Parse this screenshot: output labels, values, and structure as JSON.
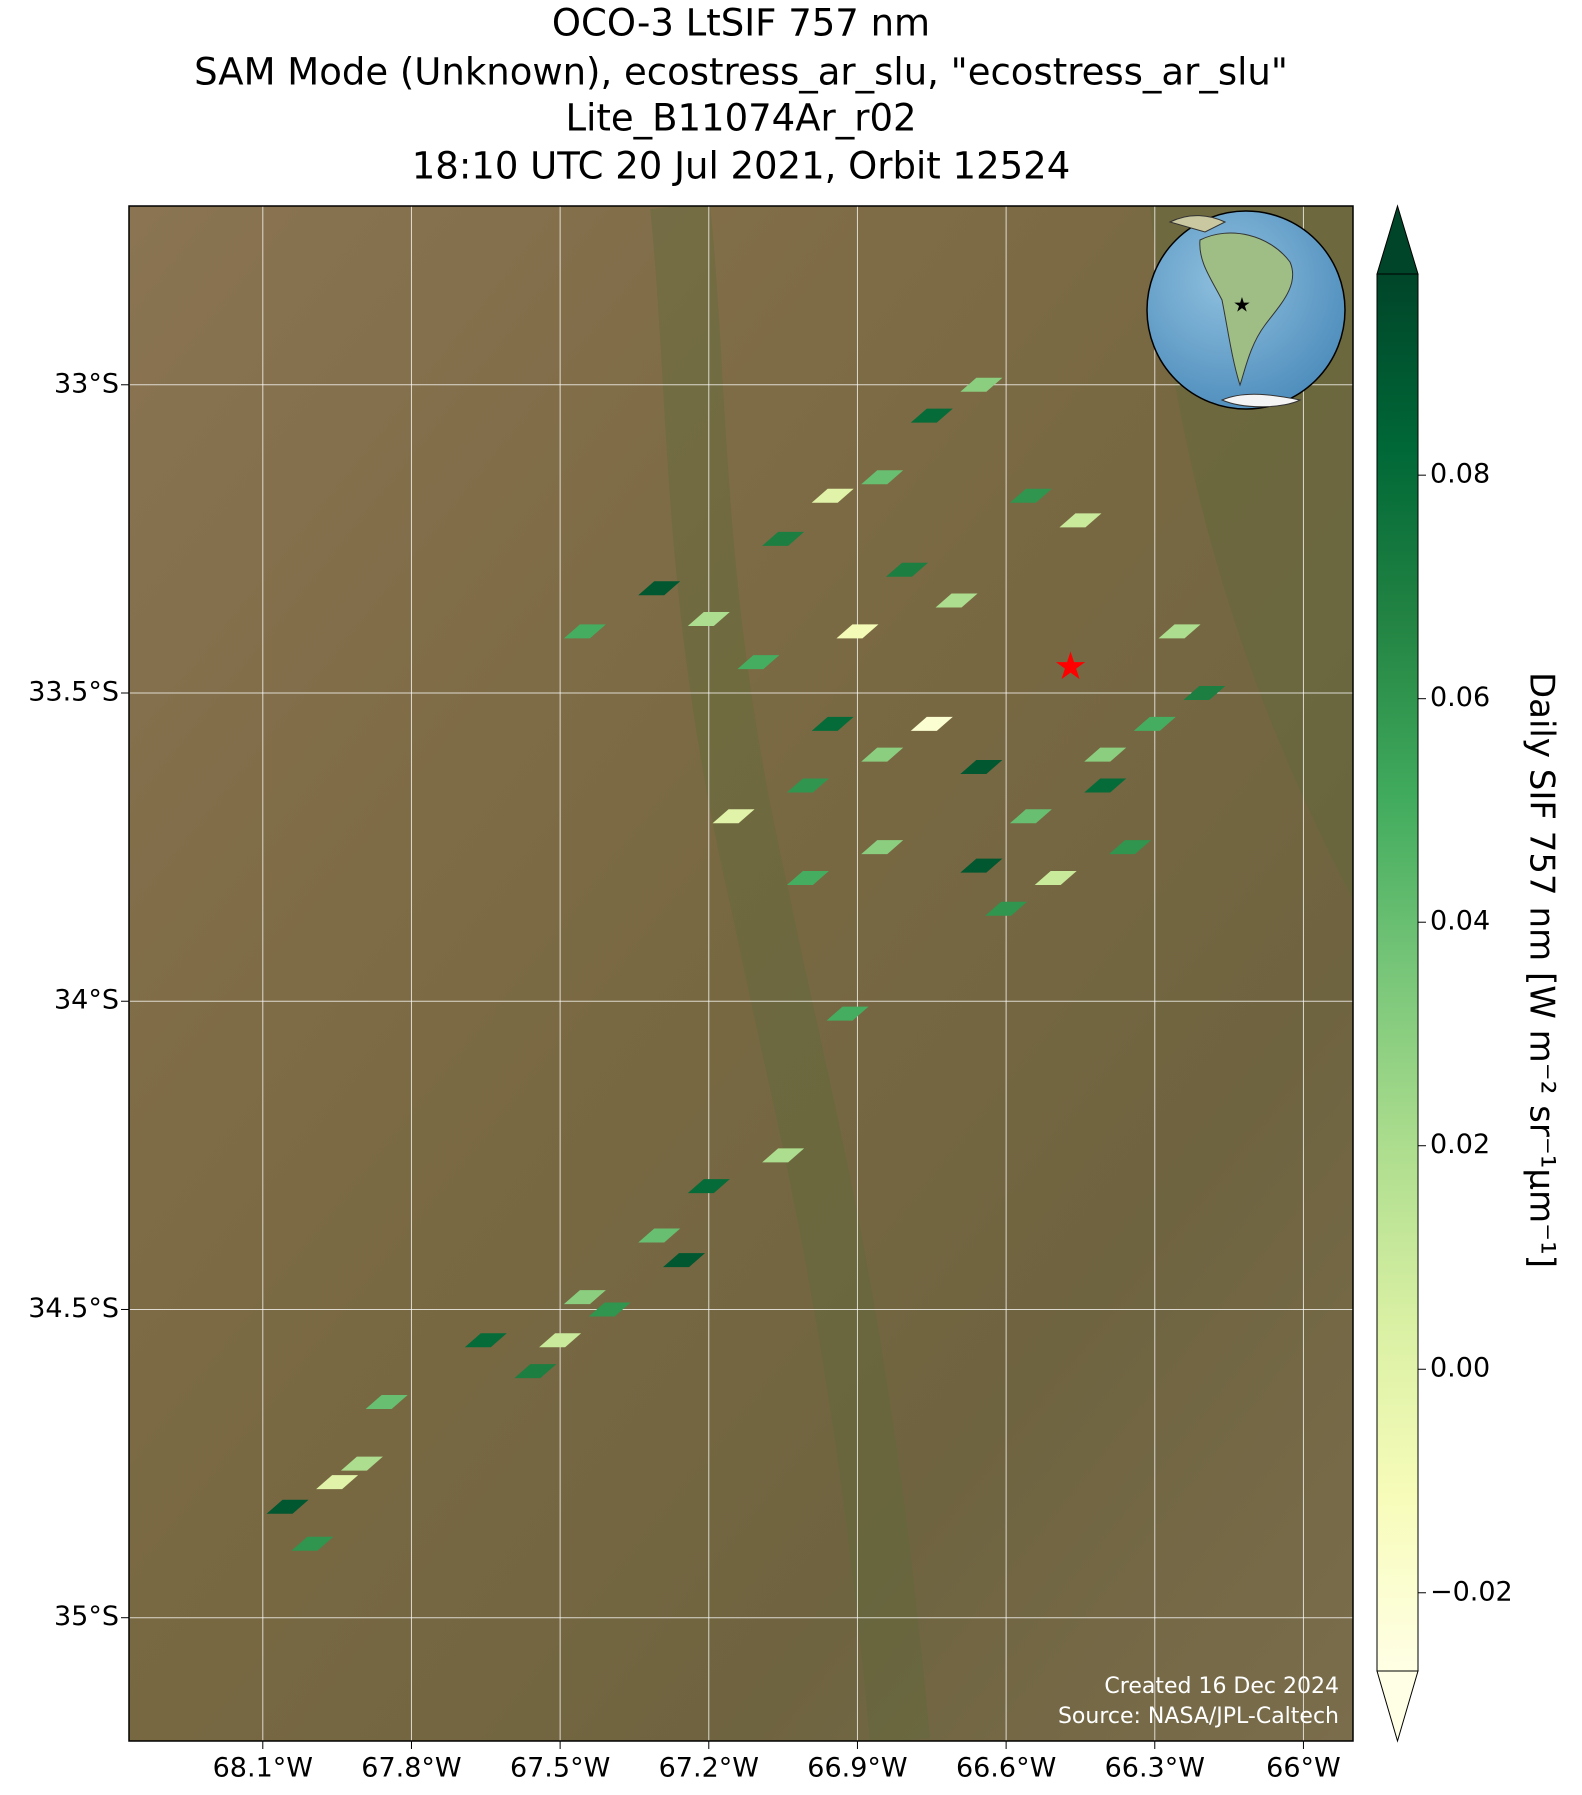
{
  "chart_data": {
    "type": "map",
    "title": [
      "OCO-3 LtSIF 757 nm",
      "SAM Mode (Unknown), ecostress_ar_slu, \"ecostress_ar_slu\"",
      "Lite_B11074Ar_r02",
      "18:10 UTC 20 Jul 2021, Orbit 12524"
    ],
    "xlim": [
      -68.37,
      -65.9
    ],
    "ylim": [
      -35.2,
      -32.71
    ],
    "xticks": [
      {
        "value": -68.1,
        "label": "68.1°W"
      },
      {
        "value": -67.8,
        "label": "67.8°W"
      },
      {
        "value": -67.5,
        "label": "67.5°W"
      },
      {
        "value": -67.2,
        "label": "67.2°W"
      },
      {
        "value": -66.9,
        "label": "66.9°W"
      },
      {
        "value": -66.6,
        "label": "66.6°W"
      },
      {
        "value": -66.3,
        "label": "66.3°W"
      },
      {
        "value": -66,
        "label": "66°W"
      }
    ],
    "yticks": [
      {
        "value": -33,
        "label": "33°S"
      },
      {
        "value": -33.5,
        "label": "33.5°S"
      },
      {
        "value": -34,
        "label": "34°S"
      },
      {
        "value": -34.5,
        "label": "34.5°S"
      },
      {
        "value": -35,
        "label": "35°S"
      }
    ],
    "grid": true,
    "colorbar_label": "Daily SIF 757 nm [W m⁻² sr⁻¹μm⁻¹]",
    "clim": [
      -0.027,
      0.098
    ],
    "cticks": [
      {
        "value": 0.08,
        "label": "0.08"
      },
      {
        "value": 0.06,
        "label": "0.06"
      },
      {
        "value": 0.04,
        "label": "0.04"
      },
      {
        "value": 0.02,
        "label": "0.02"
      },
      {
        "value": 0,
        "label": "0.00"
      },
      {
        "value": -0.02,
        "label": "−0.02"
      }
    ],
    "extend": "both",
    "colormap": [
      "#ffffe5",
      "#f7fcb9",
      "#d9f0a3",
      "#addd8e",
      "#78c679",
      "#41ab5d",
      "#238443",
      "#006837",
      "#004529"
    ],
    "lon": [
      -67.45,
      -67.3,
      -67.2,
      -67.05,
      -66.95,
      -66.85,
      -66.75,
      -66.65,
      -66.55,
      -66.45,
      -67.1,
      -66.9,
      -66.8,
      -66.7,
      -66.95,
      -66.85,
      -67.0,
      -66.75,
      -66.65,
      -66.55,
      -66.4,
      -66.3,
      -66.25,
      -66.2,
      -66.35,
      -66.5,
      -66.65,
      -66.85,
      -67.0,
      -67.15,
      -66.6,
      -66.4,
      -66.92,
      -67.05,
      -67.2,
      -67.3,
      -67.25,
      -67.4,
      -67.5,
      -67.55,
      -67.45,
      -67.65,
      -67.85,
      -67.9,
      -68.05,
      -68.0,
      -67.95
    ],
    "lat": [
      -33.4,
      -33.33,
      -33.38,
      -33.25,
      -33.18,
      -33.15,
      -33.05,
      -33.0,
      -33.18,
      -33.22,
      -33.45,
      -33.4,
      -33.3,
      -33.35,
      -33.55,
      -33.6,
      -33.65,
      -33.55,
      -33.62,
      -33.7,
      -33.65,
      -33.55,
      -33.4,
      -33.5,
      -33.75,
      -33.8,
      -33.78,
      -33.75,
      -33.8,
      -33.7,
      -33.85,
      -33.6,
      -34.02,
      -34.25,
      -34.3,
      -34.38,
      -34.42,
      -34.5,
      -34.55,
      -34.6,
      -34.48,
      -34.55,
      -34.65,
      -34.75,
      -34.82,
      -34.88,
      -34.78
    ],
    "values": [
      0.05,
      0.09,
      0.02,
      0.07,
      0.0,
      0.04,
      0.08,
      0.03,
      0.06,
      0.01,
      0.05,
      -0.01,
      0.07,
      0.02,
      0.08,
      0.03,
      0.06,
      -0.02,
      0.09,
      0.04,
      0.08,
      0.05,
      0.02,
      0.07,
      0.06,
      0.01,
      0.09,
      0.03,
      0.05,
      0.0,
      0.06,
      0.03,
      0.05,
      0.02,
      0.08,
      0.04,
      0.09,
      0.06,
      0.01,
      0.07,
      0.03,
      0.08,
      0.04,
      0.02,
      0.09,
      0.06,
      0.0
    ],
    "site": {
      "lon": -66.47,
      "lat": -33.46
    },
    "credits": [
      "Created 16 Dec 2024",
      "Source: NASA/JPL-Caltech"
    ]
  }
}
